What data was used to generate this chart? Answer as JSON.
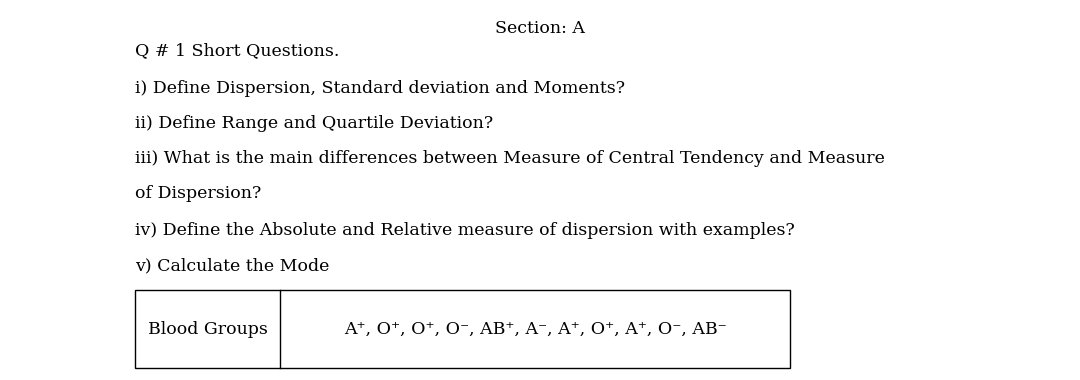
{
  "section_title": "Section: A",
  "lines": [
    "Q # 1 Short Questions.",
    "i) Define Dispersion, Standard deviation and Moments?",
    "ii) Define Range and Quartile Deviation?",
    "iii) What is the main differences between Measure of Central Tendency and Measure",
    "of Dispersion?",
    "iv) Define the Absolute and Relative measure of dispersion with examples?",
    "v) Calculate the Mode"
  ],
  "table_label": "Blood Groups",
  "table_data": "A⁺, O⁺, O⁺, O⁻, AB⁺, A⁻, A⁺, O⁺, A⁺, O⁻, AB⁻",
  "bg_color": "#ffffff",
  "text_color": "#000000",
  "font_size": 12.5,
  "section_font_size": 12.5
}
